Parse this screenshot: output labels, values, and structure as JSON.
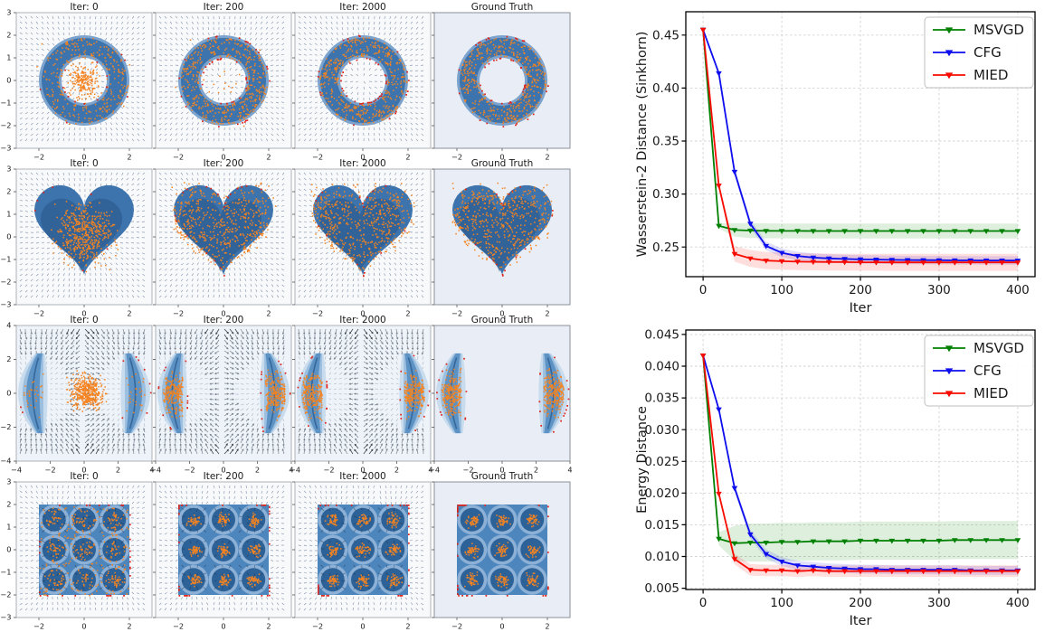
{
  "colors": {
    "orange_particles": "#f5831f",
    "red_boundary": "#e02318",
    "blue_dark": "#2e5f94",
    "blue_main": "#3d74ad",
    "blue_mid": "#5d92c4",
    "blue_rim": "#7ba3cd",
    "blue_light": "#9cbfdf",
    "blue_lightest": "#c9dcee",
    "lattice_square": "#4d86bd",
    "lattice_halo": "#8db1d6",
    "lattice_circle": "#2d6298",
    "gt_background": "#e9eef6",
    "panel_background": "#f8f9fb",
    "banana_background": "#eef3f9",
    "quiver": "#6e7f9b"
  },
  "left_grid": {
    "column_titles": [
      "Iter: 0",
      "Iter: 200",
      "Iter: 2000",
      "Ground Truth"
    ],
    "rows": [
      {
        "name": "ring",
        "xlim": [
          -3,
          3
        ],
        "ylim": [
          -3,
          3
        ],
        "xticks": [
          -2,
          0,
          2
        ],
        "xtick_labels": [
          "−2",
          "0",
          "2"
        ],
        "yticks": [
          3,
          2,
          1,
          0,
          -1,
          -2,
          -3
        ],
        "ytick_labels": [
          "3",
          "2",
          "1",
          "0",
          "−1",
          "−2",
          "−3"
        ]
      },
      {
        "name": "heart",
        "xlim": [
          -3,
          3
        ],
        "ylim": [
          -3,
          3
        ],
        "xticks": [
          -2,
          0,
          2
        ],
        "xtick_labels": [
          "−2",
          "0",
          "2"
        ],
        "yticks": [
          3,
          2,
          1,
          0,
          -1,
          -2,
          -3
        ],
        "ytick_labels": [
          "3",
          "2",
          "1",
          "0",
          "−1",
          "−2",
          "−3"
        ]
      },
      {
        "name": "bananas",
        "xlim": [
          -4,
          4
        ],
        "ylim": [
          -4,
          4
        ],
        "xticks": [
          -4,
          -2,
          0,
          2,
          4
        ],
        "xtick_labels": [
          "−4",
          "−2",
          "0",
          "2",
          "4"
        ],
        "yticks": [
          4,
          2,
          0,
          -2,
          -4
        ],
        "ytick_labels": [
          "4",
          "2",
          "0",
          "−2",
          "−4"
        ]
      },
      {
        "name": "gaussian-lattice",
        "xlim": [
          -3,
          3
        ],
        "ylim": [
          -3,
          3
        ],
        "xticks": [
          -2,
          0,
          2
        ],
        "xtick_labels": [
          "−2",
          "0",
          "2"
        ],
        "yticks": [
          3,
          2,
          1,
          0,
          -1,
          -2,
          -3
        ],
        "ytick_labels": [
          "3",
          "2",
          "1",
          "0",
          "−1",
          "−2",
          "−3"
        ]
      }
    ]
  },
  "chart_data": [
    {
      "type": "line",
      "title": "",
      "xlabel": "Iter",
      "ylabel": "Wasserstein-2 Distance (Sinkhorn)",
      "xlim": [
        -22,
        422
      ],
      "ylim": [
        0.222,
        0.472
      ],
      "xticks": [
        0,
        100,
        200,
        300,
        400
      ],
      "xtick_labels": [
        "0",
        "100",
        "200",
        "300",
        "400"
      ],
      "yticks": [
        0.25,
        0.3,
        0.35,
        0.4,
        0.45
      ],
      "ytick_labels": [
        "0.25",
        "0.30",
        "0.35",
        "0.40",
        "0.45"
      ],
      "grid": "dashed",
      "legend_position": "upper right",
      "x": [
        0,
        20,
        40,
        60,
        80,
        100,
        120,
        140,
        160,
        180,
        200,
        220,
        240,
        260,
        280,
        300,
        320,
        340,
        360,
        380,
        400
      ],
      "series": [
        {
          "name": "MSVGD",
          "color": "#008000",
          "marker": "triangle-down",
          "band": 0.007,
          "values": [
            0.455,
            0.27,
            0.266,
            0.2655,
            0.2653,
            0.2652,
            0.2652,
            0.2651,
            0.2651,
            0.2651,
            0.2651,
            0.2651,
            0.2651,
            0.2651,
            0.2651,
            0.2651,
            0.2651,
            0.2651,
            0.2651,
            0.2651,
            0.2651
          ]
        },
        {
          "name": "CFG",
          "color": "#0d0dee",
          "marker": "triangle-down",
          "band": 0.004,
          "values": [
            0.455,
            0.414,
            0.321,
            0.272,
            0.251,
            0.2445,
            0.2415,
            0.24,
            0.2392,
            0.2387,
            0.2383,
            0.2381,
            0.2379,
            0.2377,
            0.2376,
            0.2375,
            0.2374,
            0.2374,
            0.2373,
            0.2373,
            0.2372
          ]
        },
        {
          "name": "MIED",
          "color": "#f70b00",
          "marker": "triangle-down",
          "band": 0.008,
          "values": [
            0.455,
            0.308,
            0.2435,
            0.2392,
            0.2372,
            0.2366,
            0.2362,
            0.236,
            0.2358,
            0.2357,
            0.2356,
            0.2356,
            0.2355,
            0.2355,
            0.2355,
            0.2355,
            0.2355,
            0.2355,
            0.2355,
            0.2355,
            0.2355
          ]
        }
      ]
    },
    {
      "type": "line",
      "title": "",
      "xlabel": "Iter",
      "ylabel": "Energy Distance",
      "xlim": [
        -22,
        422
      ],
      "ylim": [
        0.0048,
        0.0457
      ],
      "xticks": [
        0,
        100,
        200,
        300,
        400
      ],
      "xtick_labels": [
        "0",
        "100",
        "200",
        "300",
        "400"
      ],
      "yticks": [
        0.005,
        0.01,
        0.015,
        0.02,
        0.025,
        0.03,
        0.035,
        0.04,
        0.045
      ],
      "ytick_labels": [
        "0.005",
        "0.010",
        "0.015",
        "0.020",
        "0.025",
        "0.030",
        "0.035",
        "0.040",
        "0.045"
      ],
      "grid": "dashed",
      "legend_position": "upper right",
      "x": [
        0,
        20,
        40,
        60,
        80,
        100,
        120,
        140,
        160,
        180,
        200,
        220,
        240,
        260,
        280,
        300,
        320,
        340,
        360,
        380,
        400
      ],
      "series": [
        {
          "name": "MSVGD",
          "color": "#008000",
          "marker": "triangle-down",
          "band": 0.003,
          "values": [
            0.0417,
            0.0128,
            0.0121,
            0.0122,
            0.0122,
            0.0123,
            0.0123,
            0.0124,
            0.0124,
            0.0124,
            0.0125,
            0.0125,
            0.0125,
            0.0125,
            0.0125,
            0.0125,
            0.0126,
            0.0126,
            0.0126,
            0.0126,
            0.0126
          ]
        },
        {
          "name": "CFG",
          "color": "#0d0dee",
          "marker": "triangle-down",
          "band": 0.0007,
          "values": [
            0.0417,
            0.0332,
            0.0208,
            0.0135,
            0.0104,
            0.0092,
            0.0086,
            0.0084,
            0.0082,
            0.0081,
            0.008,
            0.008,
            0.0079,
            0.0079,
            0.0079,
            0.0079,
            0.0079,
            0.0078,
            0.0078,
            0.0078,
            0.0078
          ]
        },
        {
          "name": "MIED",
          "color": "#f70b00",
          "marker": "triangle-down",
          "band": 0.0009,
          "values": [
            0.0417,
            0.0199,
            0.0096,
            0.0079,
            0.0078,
            0.0078,
            0.0077,
            0.0078,
            0.0077,
            0.0077,
            0.0077,
            0.0077,
            0.0077,
            0.0077,
            0.0077,
            0.0077,
            0.0077,
            0.0077,
            0.0077,
            0.0077,
            0.0077
          ]
        }
      ]
    }
  ]
}
